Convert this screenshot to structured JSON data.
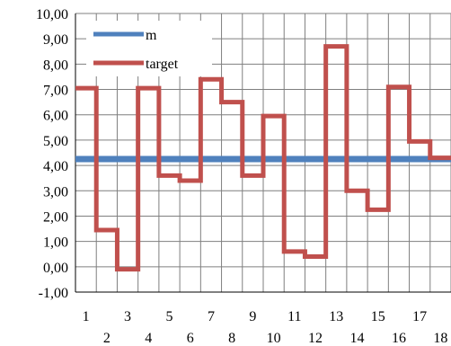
{
  "chart_data": {
    "type": "line",
    "line_shape": "step",
    "title": "",
    "xlabel": "",
    "ylabel": "",
    "x": [
      1,
      2,
      3,
      4,
      5,
      6,
      7,
      8,
      9,
      10,
      11,
      12,
      13,
      14,
      15,
      16,
      17,
      18
    ],
    "ylim": [
      -1,
      10
    ],
    "ytick_labels": [
      "10,00",
      "9,00",
      "8,00",
      "7,00",
      "6,00",
      "5,00",
      "4,00",
      "3,00",
      "2,00",
      "1,00",
      "0,00",
      "-1,00"
    ],
    "xtick_labels": [
      "1",
      "2",
      "3",
      "4",
      "5",
      "6",
      "7",
      "8",
      "9",
      "10",
      "11",
      "12",
      "13",
      "14",
      "15",
      "16",
      "17",
      "18"
    ],
    "grid": true,
    "legend_position": "top-left",
    "series": [
      {
        "name": "m",
        "color": "#4f81bd",
        "values": [
          4.25,
          4.25,
          4.25,
          4.25,
          4.25,
          4.25,
          4.25,
          4.25,
          4.25,
          4.25,
          4.25,
          4.25,
          4.25,
          4.25,
          4.25,
          4.25,
          4.25,
          4.25
        ]
      },
      {
        "name": "target",
        "color": "#c0504d",
        "values": [
          7.05,
          1.45,
          -0.1,
          7.05,
          3.6,
          3.4,
          7.4,
          6.5,
          3.6,
          5.95,
          0.6,
          0.4,
          8.7,
          3.0,
          2.25,
          7.1,
          4.95,
          4.3
        ]
      }
    ]
  }
}
